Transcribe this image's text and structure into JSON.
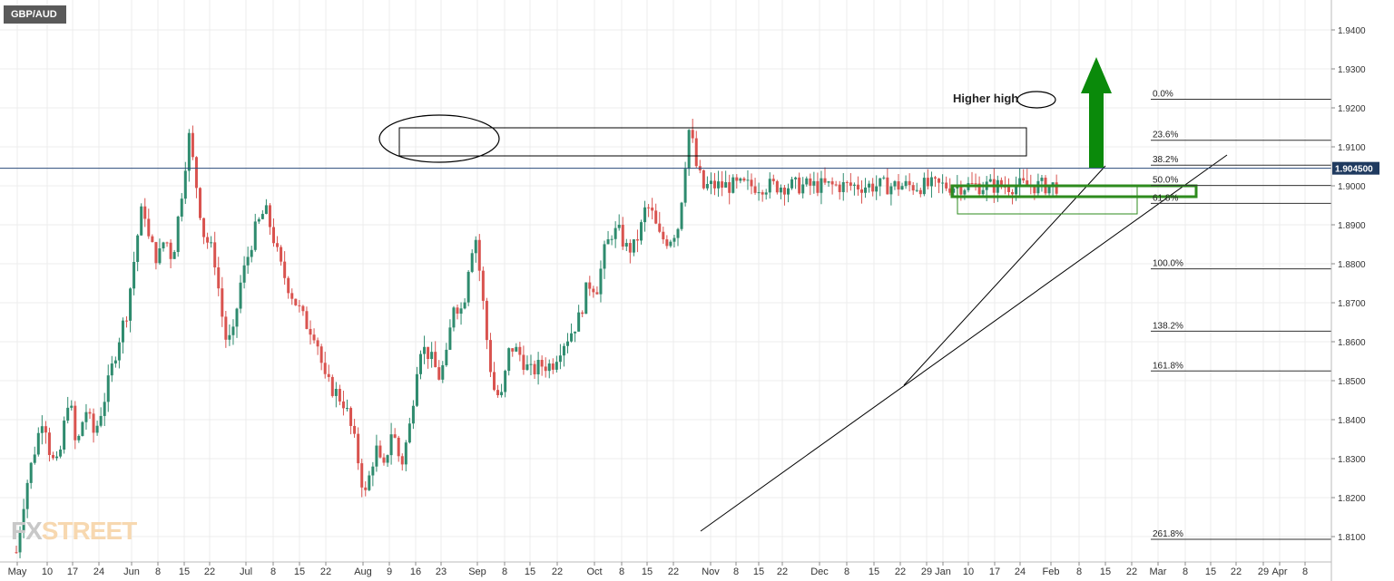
{
  "symbol": "GBP/AUD",
  "watermark": {
    "part1": "FX",
    "part2": "STREET"
  },
  "chart_data": {
    "type": "candlestick",
    "title": "GBP/AUD",
    "ylim": [
      1.8075,
      1.9475
    ],
    "y_ticks": [
      "1.9400",
      "1.9300",
      "1.9200",
      "1.9100",
      "1.9000",
      "1.8900",
      "1.8800",
      "1.8700",
      "1.8600",
      "1.8500",
      "1.8400",
      "1.8300",
      "1.8200",
      "1.8100"
    ],
    "x_ticks": [
      "May",
      "10",
      "17",
      "24",
      "Jun",
      "8",
      "15",
      "22",
      "Jul",
      "8",
      "15",
      "22",
      "Aug",
      "9",
      "16",
      "23",
      "Sep",
      "8",
      "15",
      "22",
      "Oct",
      "8",
      "15",
      "22",
      "Nov",
      "8",
      "15",
      "22",
      "Dec",
      "8",
      "15",
      "22",
      "29",
      "Jan",
      "10",
      "17",
      "24",
      "Feb",
      "8",
      "15",
      "22",
      "Mar",
      "8",
      "15",
      "22",
      "29",
      "Apr",
      "8"
    ],
    "current_price": "1.904500",
    "annotations": {
      "higher_high": "Higher high"
    },
    "fib_levels": [
      {
        "label": "0.0%",
        "value": 1.9222
      },
      {
        "label": "23.6%",
        "value": 1.9117
      },
      {
        "label": "38.2%",
        "value": 1.9053
      },
      {
        "label": "50.0%",
        "value": 1.9001
      },
      {
        "label": "61.8%",
        "value": 1.8955
      },
      {
        "label": "100.0%",
        "value": 1.8787
      },
      {
        "label": "138.2%",
        "value": 1.8627
      },
      {
        "label": "161.8%",
        "value": 1.8525
      },
      {
        "label": "261.8%",
        "value": 1.8093
      }
    ],
    "colors": {
      "up": "#2e8b6e",
      "down": "#d9534f",
      "arrow": "#0a8a0a",
      "box": "#2e8b1e",
      "line": "#000000",
      "price_line": "#2a4a7a"
    }
  }
}
